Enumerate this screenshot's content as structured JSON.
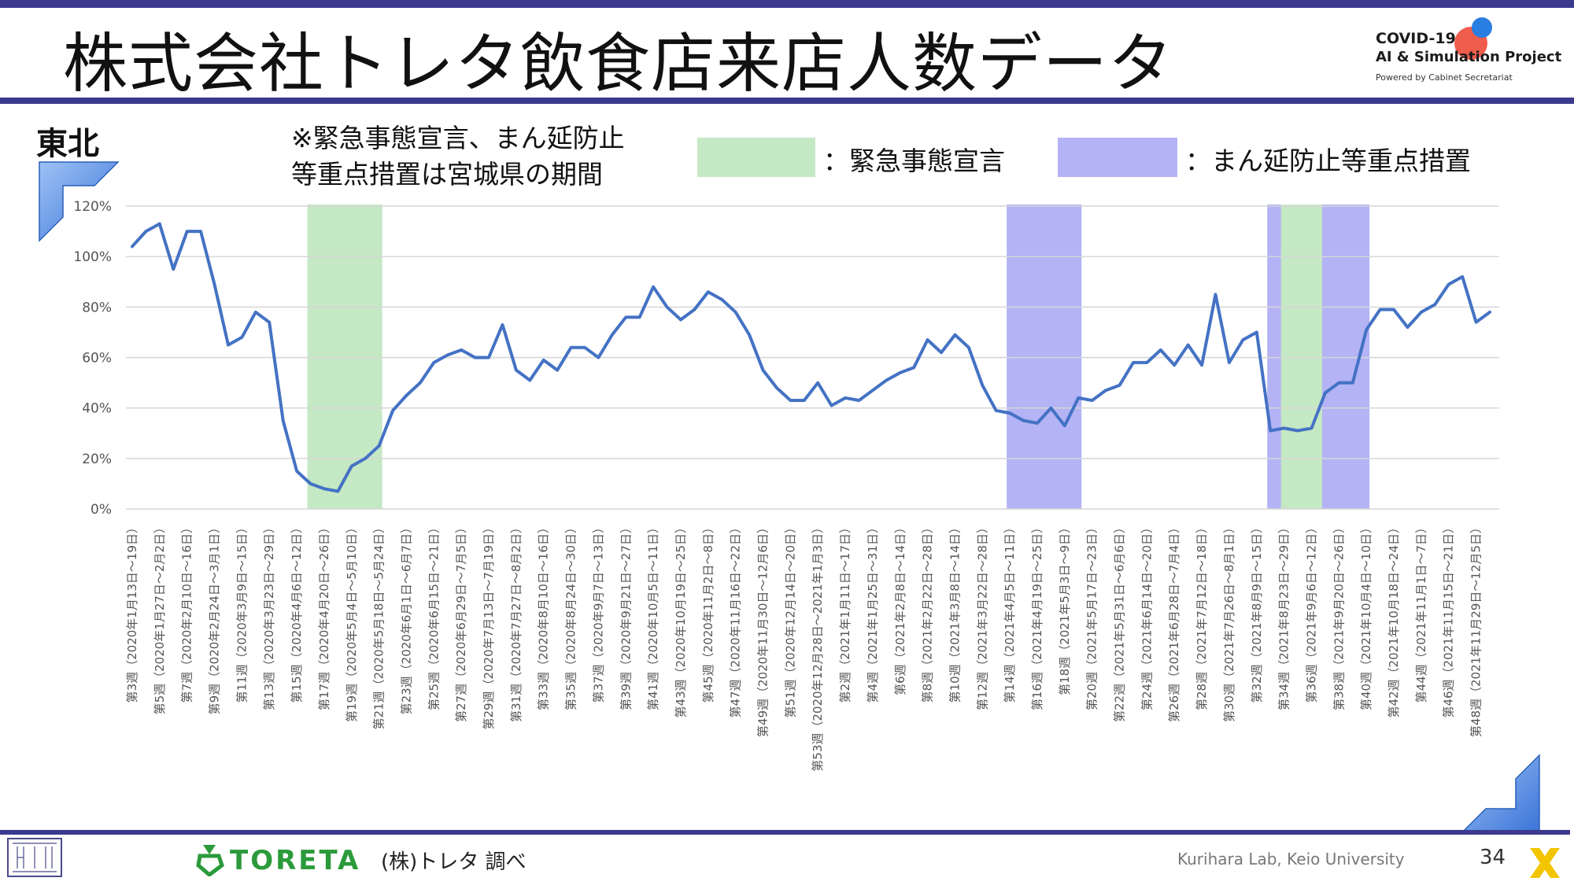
{
  "header": {
    "title": "株式会社トレタ飲食店来店人数データ",
    "project_line1": "COVID-19",
    "project_line2": "AI & Simulation Project",
    "project_line3": "Powered by Cabinet Secretariat"
  },
  "region_label": "東北",
  "note_line1": "※緊急事態宣言、まん延防止",
  "note_line2": "等重点措置は宮城県の期間",
  "legend": [
    {
      "label": "：緊急事態宣言",
      "color": "#c5e8c5"
    },
    {
      "label": "：まん延防止等重点措置",
      "color": "#b3b3f5"
    }
  ],
  "footer": {
    "brand": "TORETA",
    "source": "(株)トレタ 調べ",
    "lab": "Kurihara Lab, Keio University",
    "page": "34"
  },
  "colors": {
    "line": "#4472c4",
    "emergency": "#c5e8c5",
    "manen": "#b3b3f5",
    "accent": "#3b3a8f"
  },
  "chart_data": {
    "type": "line",
    "ylim": [
      0,
      120
    ],
    "yticks": [
      "0%",
      "20%",
      "40%",
      "60%",
      "80%",
      "100%",
      "120%"
    ],
    "grid": true,
    "tick_labels": [
      "第3週（2020年1月13日～19日）",
      "第5週（2020年1月27日～2月2日）",
      "第7週（2020年2月10日～16日）",
      "第9週（2020年2月24日～3月1日）",
      "第11週（2020年3月9日～15日）",
      "第13週（2020年3月23日～29日）",
      "第15週（2020年4月6日～12日）",
      "第17週（2020年4月20日～26日）",
      "第19週（2020年5月4日～5月10日）",
      "第21週（2020年5月18日～5月24日）",
      "第23週（2020年6月1日～6月7日）",
      "第25週（2020年6月15日～21日）",
      "第27週（2020年6月29日～7月5日）",
      "第29週（2020年7月13日～7月19日）",
      "第31週（2020年7月27日～8月2日）",
      "第33週（2020年8月10日～16日）",
      "第35週（2020年8月24日～30日）",
      "第37週（2020年9月7日～13日）",
      "第39週（2020年9月21日～27日）",
      "第41週（2020年10月5日～11日）",
      "第43週（2020年10月19日～25日）",
      "第45週（2020年11月2日～8日）",
      "第47週（2020年11月16日～22日）",
      "第49週（2020年11月30日～12月6日）",
      "第51週（2020年12月14日～20日）",
      "第53週（2020年12月28日～2021年1月3日）",
      "第2週（2021年1月11日～17日）",
      "第4週（2021年1月25日～31日）",
      "第6週（2021年2月8日～14日）",
      "第8週（2021年2月22日～28日）",
      "第10週（2021年3月8日～14日）",
      "第12週（2021年3月22日～28日）",
      "第14週（2021年4月5日～11日）",
      "第16週（2021年4月19日～25日）",
      "第18週（2021年5月3日～9日）",
      "第20週（2021年5月17日～23日）",
      "第22週（2021年5月31日～6月6日）",
      "第24週（2021年6月14日～20日）",
      "第26週（2021年6月28日～7月4日）",
      "第28週（2021年7月12日～18日）",
      "第30週（2021年7月26日～8月1日）",
      "第32週（2021年8月9日～15日）",
      "第34週（2021年8月23日～29日）",
      "第36週（2021年9月6日～12日）",
      "第38週（2021年9月20日～26日）",
      "第40週（2021年10月4日～10日）",
      "第42週（2021年10月18日～24日）",
      "第44週（2021年11月1日～7日）",
      "第46週（2021年11月15日～21日）",
      "第48週（2021年11月29日～12月5日）"
    ],
    "values": [
      104,
      110,
      113,
      95,
      110,
      110,
      89,
      65,
      68,
      78,
      74,
      35,
      15,
      10,
      8,
      7,
      17,
      20,
      25,
      39,
      45,
      50,
      58,
      61,
      63,
      60,
      60,
      73,
      55,
      51,
      59,
      55,
      64,
      64,
      60,
      69,
      76,
      76,
      88,
      80,
      75,
      79,
      86,
      83,
      78,
      69,
      55,
      48,
      43,
      43,
      50,
      41,
      44,
      43,
      47,
      51,
      54,
      56,
      67,
      62,
      69,
      64,
      49,
      39,
      38,
      35,
      34,
      40,
      33,
      44,
      43,
      47,
      49,
      58,
      58,
      63,
      57,
      65,
      57,
      85,
      58,
      67,
      70,
      31,
      32,
      31,
      32,
      46,
      50,
      50,
      71,
      79,
      79,
      72,
      78,
      81,
      89,
      92,
      74,
      78
    ],
    "shaded_regions": [
      {
        "kind": "緊急事態宣言",
        "start": 13,
        "end": 18
      },
      {
        "kind": "まん延防止等重点措置",
        "start": 64,
        "end": 69
      },
      {
        "kind": "まん延防止等重点措置",
        "start": 83,
        "end": 84
      },
      {
        "kind": "緊急事態宣言",
        "start": 84,
        "end": 87
      },
      {
        "kind": "まん延防止等重点措置",
        "start": 87,
        "end": 90
      }
    ]
  }
}
